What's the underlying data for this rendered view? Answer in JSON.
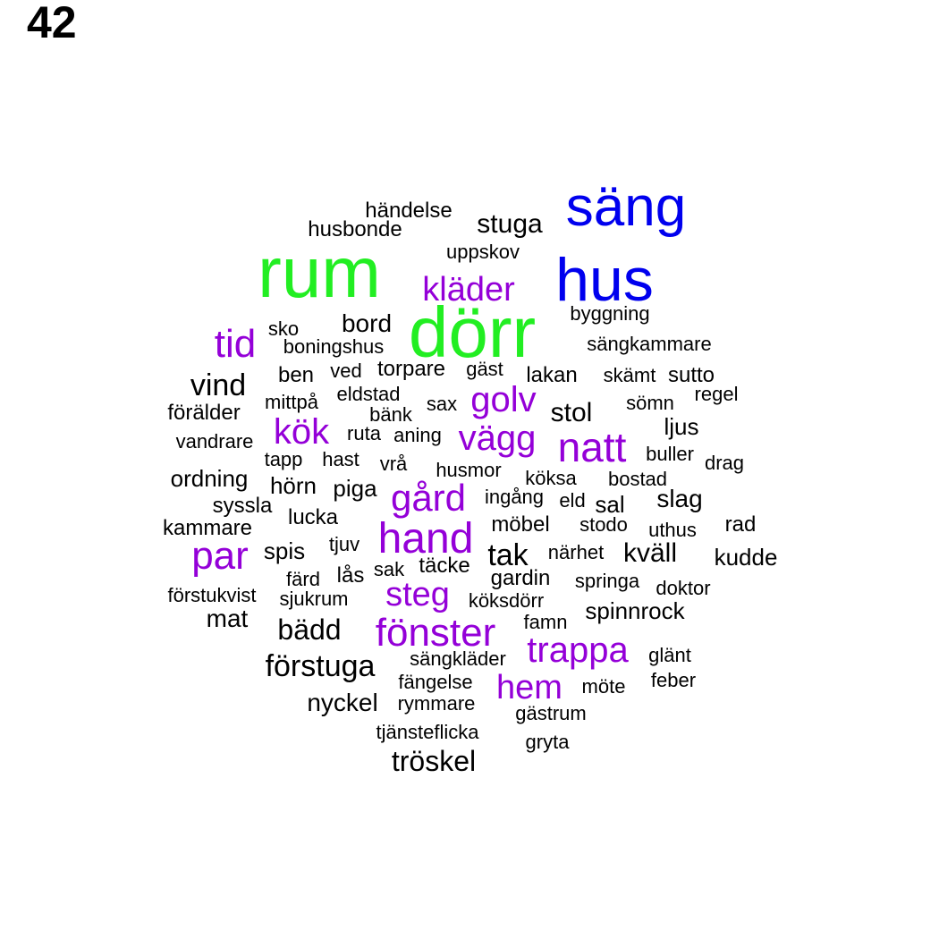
{
  "page_label": "42",
  "colors": {
    "green": "#22ee22",
    "blue": "#0000ee",
    "purple": "#9400d8",
    "black": "#000000"
  },
  "words": [
    {
      "text": "rum",
      "color": "green"
    },
    {
      "text": "dörr",
      "color": "green"
    },
    {
      "text": "säng",
      "color": "blue"
    },
    {
      "text": "hus",
      "color": "blue"
    },
    {
      "text": "kläder",
      "color": "purple"
    },
    {
      "text": "tid",
      "color": "purple"
    },
    {
      "text": "golv",
      "color": "purple"
    },
    {
      "text": "kök",
      "color": "purple"
    },
    {
      "text": "vägg",
      "color": "purple"
    },
    {
      "text": "natt",
      "color": "purple"
    },
    {
      "text": "gård",
      "color": "purple"
    },
    {
      "text": "hand",
      "color": "purple"
    },
    {
      "text": "par",
      "color": "purple"
    },
    {
      "text": "steg",
      "color": "purple"
    },
    {
      "text": "fönster",
      "color": "purple"
    },
    {
      "text": "trappa",
      "color": "purple"
    },
    {
      "text": "hem",
      "color": "purple"
    },
    {
      "text": "händelse",
      "color": "black"
    },
    {
      "text": "husbonde",
      "color": "black"
    },
    {
      "text": "stuga",
      "color": "black"
    },
    {
      "text": "uppskov",
      "color": "black"
    },
    {
      "text": "byggning",
      "color": "black"
    },
    {
      "text": "sko",
      "color": "black"
    },
    {
      "text": "bord",
      "color": "black"
    },
    {
      "text": "boningshus",
      "color": "black"
    },
    {
      "text": "sängkammare",
      "color": "black"
    },
    {
      "text": "ben",
      "color": "black"
    },
    {
      "text": "ved",
      "color": "black"
    },
    {
      "text": "torpare",
      "color": "black"
    },
    {
      "text": "gäst",
      "color": "black"
    },
    {
      "text": "lakan",
      "color": "black"
    },
    {
      "text": "skämt",
      "color": "black"
    },
    {
      "text": "sutto",
      "color": "black"
    },
    {
      "text": "vind",
      "color": "black"
    },
    {
      "text": "mittpå",
      "color": "black"
    },
    {
      "text": "eldstad",
      "color": "black"
    },
    {
      "text": "regel",
      "color": "black"
    },
    {
      "text": "förälder",
      "color": "black"
    },
    {
      "text": "bänk",
      "color": "black"
    },
    {
      "text": "sax",
      "color": "black"
    },
    {
      "text": "stol",
      "color": "black"
    },
    {
      "text": "sömn",
      "color": "black"
    },
    {
      "text": "ljus",
      "color": "black"
    },
    {
      "text": "ruta",
      "color": "black"
    },
    {
      "text": "aning",
      "color": "black"
    },
    {
      "text": "vandrare",
      "color": "black"
    },
    {
      "text": "buller",
      "color": "black"
    },
    {
      "text": "drag",
      "color": "black"
    },
    {
      "text": "tapp",
      "color": "black"
    },
    {
      "text": "hast",
      "color": "black"
    },
    {
      "text": "vrå",
      "color": "black"
    },
    {
      "text": "husmor",
      "color": "black"
    },
    {
      "text": "ordning",
      "color": "black"
    },
    {
      "text": "köksa",
      "color": "black"
    },
    {
      "text": "bostad",
      "color": "black"
    },
    {
      "text": "hörn",
      "color": "black"
    },
    {
      "text": "piga",
      "color": "black"
    },
    {
      "text": "ingång",
      "color": "black"
    },
    {
      "text": "eld",
      "color": "black"
    },
    {
      "text": "sal",
      "color": "black"
    },
    {
      "text": "slag",
      "color": "black"
    },
    {
      "text": "syssla",
      "color": "black"
    },
    {
      "text": "lucka",
      "color": "black"
    },
    {
      "text": "möbel",
      "color": "black"
    },
    {
      "text": "stodo",
      "color": "black"
    },
    {
      "text": "uthus",
      "color": "black"
    },
    {
      "text": "rad",
      "color": "black"
    },
    {
      "text": "kammare",
      "color": "black"
    },
    {
      "text": "tjuv",
      "color": "black"
    },
    {
      "text": "spis",
      "color": "black"
    },
    {
      "text": "tak",
      "color": "black"
    },
    {
      "text": "närhet",
      "color": "black"
    },
    {
      "text": "kväll",
      "color": "black"
    },
    {
      "text": "kudde",
      "color": "black"
    },
    {
      "text": "färd",
      "color": "black"
    },
    {
      "text": "lås",
      "color": "black"
    },
    {
      "text": "sak",
      "color": "black"
    },
    {
      "text": "täcke",
      "color": "black"
    },
    {
      "text": "gardin",
      "color": "black"
    },
    {
      "text": "springa",
      "color": "black"
    },
    {
      "text": "doktor",
      "color": "black"
    },
    {
      "text": "förstukvist",
      "color": "black"
    },
    {
      "text": "sjukrum",
      "color": "black"
    },
    {
      "text": "köksdörr",
      "color": "black"
    },
    {
      "text": "mat",
      "color": "black"
    },
    {
      "text": "spinnrock",
      "color": "black"
    },
    {
      "text": "bädd",
      "color": "black"
    },
    {
      "text": "famn",
      "color": "black"
    },
    {
      "text": "glänt",
      "color": "black"
    },
    {
      "text": "sängkläder",
      "color": "black"
    },
    {
      "text": "förstuga",
      "color": "black"
    },
    {
      "text": "fängelse",
      "color": "black"
    },
    {
      "text": "feber",
      "color": "black"
    },
    {
      "text": "möte",
      "color": "black"
    },
    {
      "text": "nyckel",
      "color": "black"
    },
    {
      "text": "rymmare",
      "color": "black"
    },
    {
      "text": "gästrum",
      "color": "black"
    },
    {
      "text": "tjänsteflicka",
      "color": "black"
    },
    {
      "text": "gryta",
      "color": "black"
    },
    {
      "text": "tröskel",
      "color": "black"
    }
  ]
}
